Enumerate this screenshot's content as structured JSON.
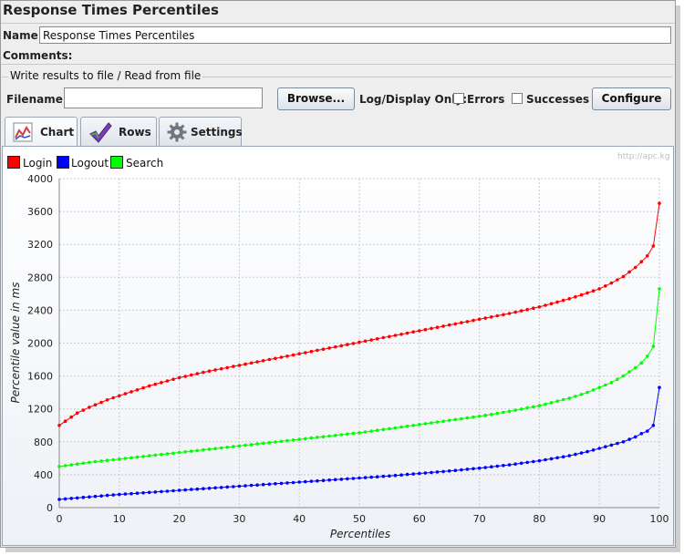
{
  "window": {
    "title": "Response Times Percentiles"
  },
  "form": {
    "name_label": "Name:",
    "name_value": "Response Times Percentiles",
    "comments_label": "Comments:",
    "group_title": "Write results to file / Read from file",
    "filename_label": "Filename",
    "filename_value": "",
    "browse_label": "Browse...",
    "log_display_label": "Log/Display Only:",
    "errors_label": "Errors",
    "errors_checked": false,
    "successes_label": "Successes",
    "successes_checked": false,
    "configure_label": "Configure"
  },
  "tabs": [
    {
      "label": "Chart",
      "icon": "chart-icon",
      "active": true
    },
    {
      "label": "Rows",
      "icon": "checkmark-icon",
      "active": false
    },
    {
      "label": "Settings",
      "icon": "gear-icon",
      "active": false
    }
  ],
  "watermark": "http://apc.kg",
  "colors": {
    "login": "#ff0000",
    "logout": "#0000ff",
    "search": "#00ff00"
  },
  "chart_data": {
    "type": "line",
    "xlabel": "Percentiles",
    "ylabel": "Percentile value in ms",
    "xlim": [
      0,
      100
    ],
    "ylim": [
      0,
      4000
    ],
    "xticks": [
      0,
      10,
      20,
      30,
      40,
      50,
      60,
      70,
      80,
      90,
      100
    ],
    "yticks": [
      0,
      400,
      800,
      1200,
      1600,
      2000,
      2400,
      2800,
      3200,
      3600,
      4000
    ],
    "grid": true,
    "legend_position": "top-left",
    "series": [
      {
        "name": "Login",
        "color": "#ff0000",
        "points": [
          [
            0,
            1000
          ],
          [
            1,
            1050
          ],
          [
            2,
            1100
          ],
          [
            3,
            1150
          ],
          [
            5,
            1220
          ],
          [
            8,
            1310
          ],
          [
            10,
            1360
          ],
          [
            15,
            1480
          ],
          [
            20,
            1580
          ],
          [
            25,
            1660
          ],
          [
            30,
            1730
          ],
          [
            35,
            1800
          ],
          [
            40,
            1870
          ],
          [
            45,
            1940
          ],
          [
            50,
            2010
          ],
          [
            55,
            2080
          ],
          [
            60,
            2150
          ],
          [
            65,
            2220
          ],
          [
            70,
            2290
          ],
          [
            75,
            2360
          ],
          [
            80,
            2440
          ],
          [
            85,
            2540
          ],
          [
            88,
            2610
          ],
          [
            90,
            2660
          ],
          [
            92,
            2730
          ],
          [
            94,
            2810
          ],
          [
            96,
            2920
          ],
          [
            97,
            2990
          ],
          [
            98,
            3060
          ],
          [
            99,
            3180
          ],
          [
            100,
            3700
          ]
        ]
      },
      {
        "name": "Logout",
        "color": "#0000ff",
        "points": [
          [
            0,
            100
          ],
          [
            5,
            130
          ],
          [
            10,
            160
          ],
          [
            15,
            185
          ],
          [
            20,
            210
          ],
          [
            25,
            235
          ],
          [
            30,
            260
          ],
          [
            35,
            285
          ],
          [
            40,
            310
          ],
          [
            45,
            335
          ],
          [
            50,
            360
          ],
          [
            55,
            385
          ],
          [
            60,
            415
          ],
          [
            65,
            445
          ],
          [
            70,
            480
          ],
          [
            75,
            520
          ],
          [
            80,
            570
          ],
          [
            85,
            630
          ],
          [
            88,
            680
          ],
          [
            90,
            720
          ],
          [
            92,
            760
          ],
          [
            94,
            800
          ],
          [
            96,
            860
          ],
          [
            97,
            900
          ],
          [
            98,
            930
          ],
          [
            99,
            1000
          ],
          [
            100,
            1460
          ]
        ]
      },
      {
        "name": "Search",
        "color": "#00ff00",
        "points": [
          [
            0,
            500
          ],
          [
            5,
            550
          ],
          [
            10,
            590
          ],
          [
            15,
            630
          ],
          [
            20,
            670
          ],
          [
            25,
            710
          ],
          [
            30,
            750
          ],
          [
            35,
            790
          ],
          [
            40,
            830
          ],
          [
            45,
            870
          ],
          [
            50,
            910
          ],
          [
            55,
            960
          ],
          [
            60,
            1010
          ],
          [
            65,
            1060
          ],
          [
            70,
            1110
          ],
          [
            75,
            1170
          ],
          [
            80,
            1240
          ],
          [
            85,
            1330
          ],
          [
            88,
            1400
          ],
          [
            90,
            1460
          ],
          [
            92,
            1520
          ],
          [
            94,
            1600
          ],
          [
            96,
            1700
          ],
          [
            97,
            1760
          ],
          [
            98,
            1840
          ],
          [
            99,
            1960
          ],
          [
            100,
            2660
          ]
        ]
      }
    ]
  }
}
